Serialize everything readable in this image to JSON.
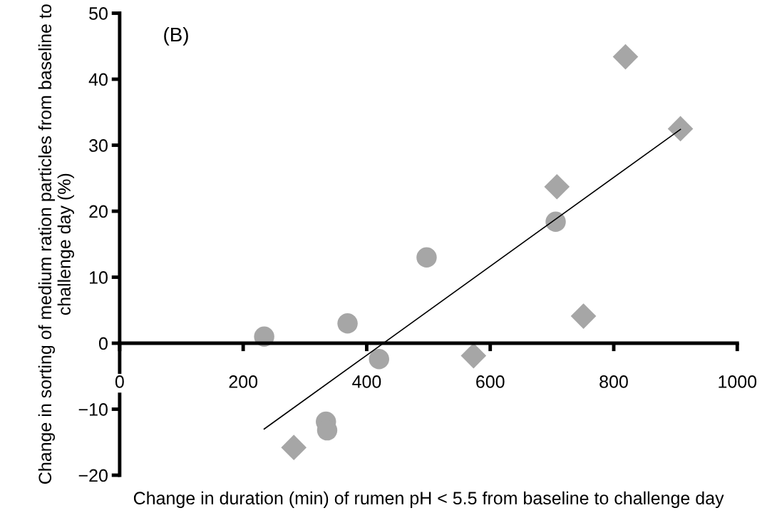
{
  "chart_data": {
    "type": "scatter",
    "xlabel": "Change in duration (min) of rumen pH < 5.5 from baseline to challenge day",
    "ylabel": "Change in sorting of medium ration particles from baseline to challenge day (%)",
    "annotations": [
      "(B)"
    ],
    "xlim": [
      0,
      1000
    ],
    "ylim": [
      -20,
      50
    ],
    "xticks": [
      0,
      200,
      400,
      600,
      800,
      1000
    ],
    "yticks": [
      {
        "value": -20,
        "label": "−20"
      },
      {
        "value": -10,
        "label": "−10"
      },
      0,
      10,
      20,
      30,
      40,
      50
    ],
    "grid": false,
    "legend": false,
    "series": [
      {
        "marker": "circle",
        "color": "#a6a6a6",
        "x": [
          234,
          369,
          420,
          334,
          336,
          497,
          706
        ],
        "values": [
          1,
          3,
          -2.4,
          -11.9,
          -13.2,
          13,
          18.4
        ]
      },
      {
        "marker": "diamond",
        "color": "#a6a6a6",
        "x": [
          282,
          573,
          751,
          708,
          819,
          908
        ],
        "values": [
          -15.8,
          -1.9,
          4.1,
          23.7,
          43.4,
          32.5
        ]
      },
      {
        "type": "line",
        "marker": "none",
        "color": "#000000",
        "x": [
          234,
          908
        ],
        "values": [
          -13,
          32.4
        ]
      }
    ]
  }
}
